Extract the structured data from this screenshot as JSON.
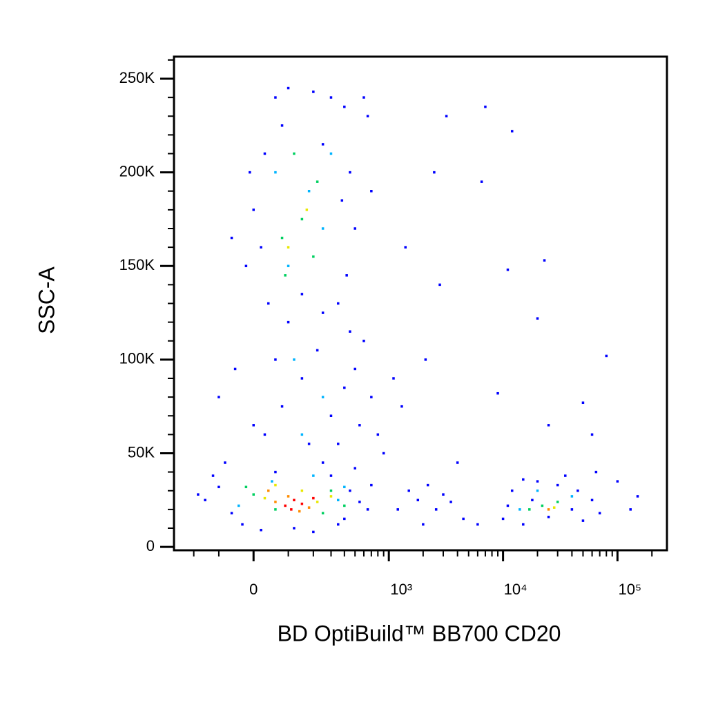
{
  "chart_data": {
    "type": "scatter",
    "x_label": "BD OptiBuild™  BB700 CD20",
    "y_label": "SSC-A",
    "xscale": "asinh",
    "xscale_cofactor": 132,
    "xlim": [
      -314,
      270700
    ],
    "ylim": [
      -1800,
      261800
    ],
    "xticks": [
      0,
      {
        "value": 1000,
        "label": "10³"
      },
      {
        "value": 10000,
        "label": "10⁴"
      },
      {
        "value": 100000,
        "label": "10⁵"
      }
    ],
    "xminorticks": [
      -200,
      -100,
      100,
      200,
      300,
      400,
      500,
      600,
      700,
      800,
      900,
      2000,
      3000,
      4000,
      5000,
      6000,
      7000,
      8000,
      9000,
      20000,
      30000,
      40000,
      50000,
      60000,
      70000,
      80000,
      90000,
      200000
    ],
    "yticks": [
      0,
      {
        "value": 50000,
        "label": "50K"
      },
      {
        "value": 100000,
        "label": "100K"
      },
      {
        "value": 150000,
        "label": "150K"
      },
      {
        "value": 200000,
        "label": "200K"
      },
      {
        "value": 250000,
        "label": "250K"
      }
    ],
    "yminorticks": [
      10000,
      20000,
      30000,
      40000,
      60000,
      70000,
      80000,
      90000,
      110000,
      120000,
      130000,
      140000,
      160000,
      170000,
      180000,
      190000,
      210000,
      220000,
      230000,
      240000,
      260000
    ],
    "series": [
      {
        "color": "#0000ff",
        "x": [
          -150,
          -100,
          -60,
          -30,
          -120,
          20,
          60,
          300,
          450,
          550,
          650,
          400,
          700,
          -80,
          250,
          120,
          200,
          350,
          -180,
          500,
          30,
          80,
          150,
          220,
          300,
          400,
          500,
          600,
          100,
          -50,
          0,
          180,
          350,
          700,
          800,
          250,
          450,
          -100,
          60,
          550,
          900,
          1100,
          1300,
          -20,
          0,
          30,
          60,
          100,
          200,
          300,
          400,
          450,
          500,
          420,
          350,
          -60,
          -10,
          40,
          80,
          250,
          380,
          150,
          20,
          600,
          700,
          650,
          1500,
          1800,
          2200,
          2600,
          3000,
          2000,
          3500,
          1200,
          4500,
          6000,
          2500,
          3200,
          1400,
          2800,
          7000,
          12000,
          6500,
          11000,
          23000,
          20000,
          80000,
          50000,
          60000,
          25000,
          9000,
          2100,
          4000,
          130000,
          100000,
          150000,
          10000,
          12000,
          15000,
          20000,
          30000,
          45000,
          60000,
          70000,
          50000,
          35000,
          18000,
          11000,
          25000,
          65000,
          40000,
          15000
        ],
        "values": [
          25000,
          32000,
          18000,
          12000,
          38000,
          9000,
          40000,
          38000,
          30000,
          24000,
          20000,
          15000,
          33000,
          45000,
          45000,
          10000,
          8000,
          12000,
          28000,
          42000,
          60000,
          75000,
          90000,
          105000,
          70000,
          85000,
          95000,
          110000,
          120000,
          95000,
          65000,
          55000,
          55000,
          80000,
          60000,
          125000,
          115000,
          80000,
          100000,
          65000,
          50000,
          90000,
          75000,
          150000,
          180000,
          210000,
          240000,
          245000,
          243000,
          240000,
          235000,
          200000,
          170000,
          145000,
          130000,
          165000,
          200000,
          130000,
          225000,
          215000,
          185000,
          135000,
          160000,
          240000,
          190000,
          230000,
          30000,
          25000,
          33000,
          20000,
          28000,
          12000,
          24000,
          20000,
          15000,
          12000,
          200000,
          230000,
          160000,
          140000,
          235000,
          222000,
          195000,
          148000,
          153000,
          122000,
          102000,
          77000,
          60000,
          65000,
          82000,
          100000,
          45000,
          20000,
          35000,
          27000,
          15000,
          30000,
          12000,
          35000,
          33000,
          30000,
          25000,
          18000,
          14000,
          38000,
          25000,
          22000,
          16000,
          40000,
          20000,
          36000
        ]
      },
      {
        "color": "#00b4ff",
        "x": [
          50,
          200,
          350,
          -40,
          400,
          100,
          180,
          250,
          60,
          300,
          120,
          20000,
          40000,
          14000,
          250,
          150
        ],
        "values": [
          35000,
          38000,
          25000,
          22000,
          32000,
          150000,
          190000,
          170000,
          200000,
          210000,
          100000,
          30000,
          27000,
          20000,
          80000,
          60000
        ]
      },
      {
        "color": "#00d060",
        "x": [
          0,
          60,
          300,
          250,
          -20,
          80,
          150,
          200,
          120,
          220,
          90,
          22000,
          30000,
          17000,
          400
        ],
        "values": [
          28000,
          20000,
          30000,
          18000,
          32000,
          165000,
          175000,
          155000,
          210000,
          195000,
          145000,
          22000,
          24000,
          20000,
          22000
        ]
      },
      {
        "color": "#e8e800",
        "x": [
          30,
          150,
          220,
          100,
          170,
          28000,
          60,
          300
        ],
        "values": [
          26000,
          30000,
          24000,
          160000,
          180000,
          21000,
          33000,
          27000
        ]
      },
      {
        "color": "#ff8c00",
        "x": [
          60,
          100,
          180,
          140,
          25000,
          40
        ],
        "values": [
          24000,
          27000,
          21000,
          19000,
          20000,
          30000
        ]
      },
      {
        "color": "#ff0000",
        "x": [
          90,
          120,
          150,
          110,
          200
        ],
        "values": [
          22000,
          25000,
          23000,
          20000,
          26000
        ]
      }
    ]
  }
}
